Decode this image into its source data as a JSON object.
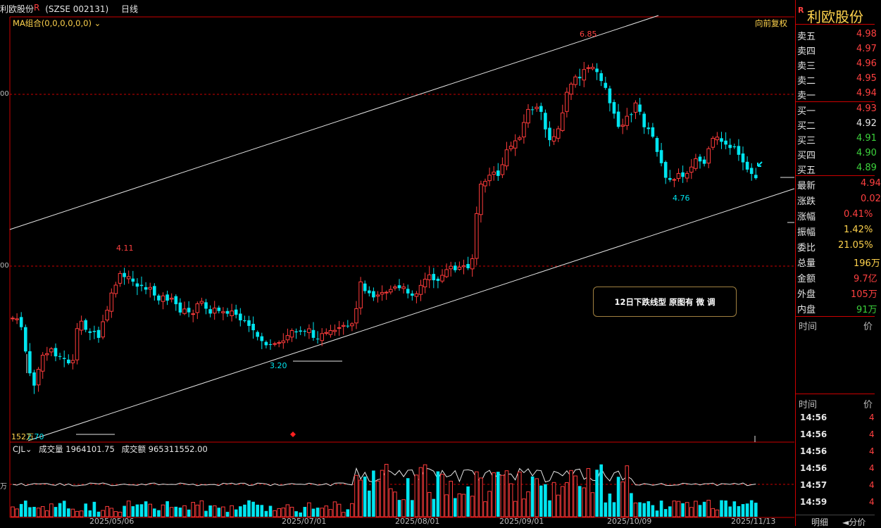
{
  "header": {
    "stock_name": "利欧股份",
    "r_mark": "R",
    "code": "(SZSE 002131)",
    "period": "日线",
    "ma_label": "MA组合(0,0,0,0,0,0)",
    "adjust": "向前复权"
  },
  "price_labels": {
    "high_peak": "6.85",
    "mid_peak": "4.11",
    "trough": "3.20",
    "recent_low": "4.76",
    "start_low": "2.70",
    "start_vol": "152万"
  },
  "left_axis": {
    "upper": "00",
    "lower": "00",
    "vol": "万"
  },
  "annotation": "12日下跌线型  原图有    微 调",
  "volume": {
    "indicator": "CJL",
    "vol_label": "成交量",
    "vol_value": "1964101.75",
    "amt_label": "成交额",
    "amt_value": "965311552.00"
  },
  "dates": [
    "2025/05/06",
    "2025/07/01",
    "2025/08/01",
    "2025/09/01",
    "2025/10/09",
    "2025/11/13"
  ],
  "side": {
    "r_mark": "R",
    "name": "利欧股份",
    "asks": [
      {
        "k": "卖五",
        "v": "4.98"
      },
      {
        "k": "卖四",
        "v": "4.97"
      },
      {
        "k": "卖三",
        "v": "4.96"
      },
      {
        "k": "卖二",
        "v": "4.95"
      },
      {
        "k": "卖一",
        "v": "4.94"
      }
    ],
    "bids": [
      {
        "k": "买一",
        "v": "4.93"
      },
      {
        "k": "买二",
        "v": "4.92"
      },
      {
        "k": "买三",
        "v": "4.91"
      },
      {
        "k": "买四",
        "v": "4.90"
      },
      {
        "k": "买五",
        "v": "4.89"
      }
    ],
    "stats": [
      {
        "k": "最新",
        "v": "4.94"
      },
      {
        "k": "涨跌",
        "v": "0.02"
      },
      {
        "k": "涨幅",
        "v": "0.41%"
      },
      {
        "k": "振幅",
        "v": "1.42%"
      },
      {
        "k": "委比",
        "v": "21.05%"
      },
      {
        "k": "总量",
        "v": "196万"
      },
      {
        "k": "金额",
        "v": "9.7亿"
      },
      {
        "k": "外盘",
        "v": "105万"
      },
      {
        "k": "内盘",
        "v": "91万"
      }
    ],
    "time_hdr": "时间",
    "price_hdr": "价",
    "ticks": [
      {
        "t": "14:56",
        "p": "4"
      },
      {
        "t": "14:56",
        "p": "4"
      },
      {
        "t": "14:56",
        "p": "4"
      },
      {
        "t": "14:56",
        "p": "4"
      },
      {
        "t": "14:57",
        "p": "4"
      },
      {
        "t": "14:59",
        "p": "4"
      }
    ],
    "tab1": "明细",
    "tab2": "分价"
  },
  "colors": {
    "up": "#ff3b3b",
    "down": "#00e5f0",
    "gold": "#ffd34d",
    "green": "#3cd23c"
  }
}
